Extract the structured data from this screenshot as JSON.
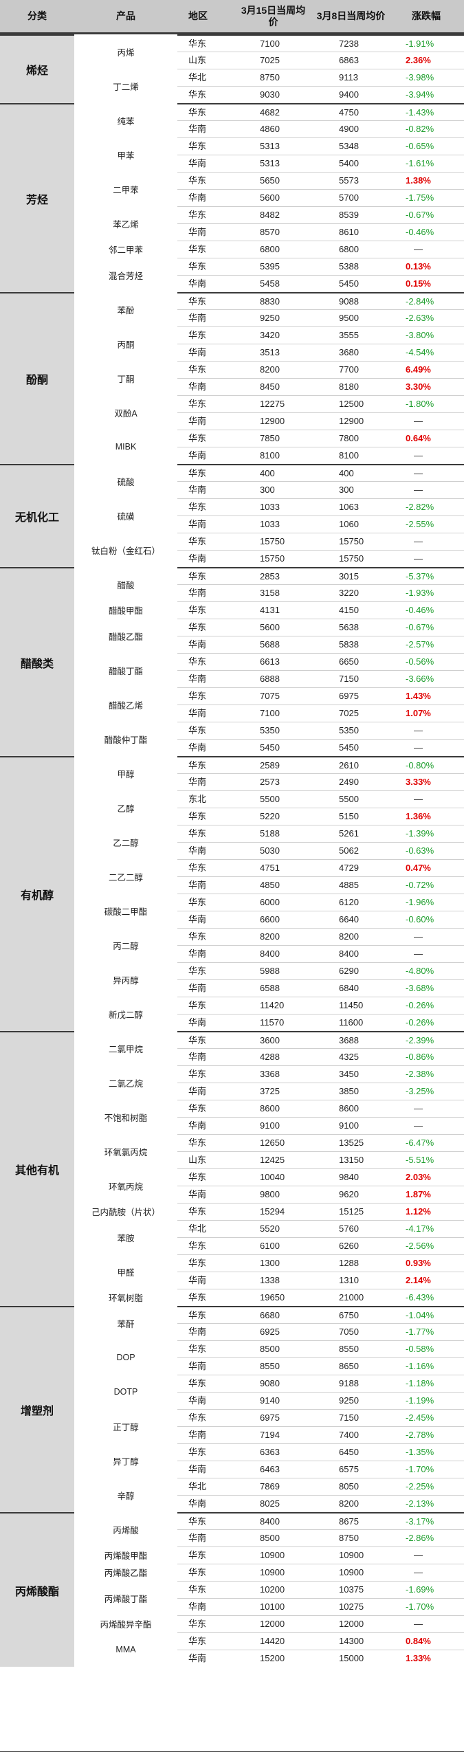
{
  "headers": {
    "category": "分类",
    "product": "产品",
    "region": "地区",
    "price_this_week": "3月15日当周均价",
    "price_last_week": "3月8日当周均价",
    "change": "涨跌幅"
  },
  "flat_symbol": "—",
  "colors": {
    "up": "#e00000",
    "down": "#1e9e2d",
    "header_bg": "#c9c9c9",
    "category_bg": "#d9d9d9"
  },
  "categories": [
    {
      "name": "烯烃",
      "products": [
        {
          "name": "丙烯",
          "rows": [
            [
              "华东",
              "7100",
              "7238",
              "-1.91%"
            ],
            [
              "山东",
              "7025",
              "6863",
              "2.36%"
            ]
          ]
        },
        {
          "name": "丁二烯",
          "rows": [
            [
              "华北",
              "8750",
              "9113",
              "-3.98%"
            ],
            [
              "华东",
              "9030",
              "9400",
              "-3.94%"
            ]
          ]
        }
      ]
    },
    {
      "name": "芳烃",
      "products": [
        {
          "name": "纯苯",
          "rows": [
            [
              "华东",
              "4682",
              "4750",
              "-1.43%"
            ],
            [
              "华南",
              "4860",
              "4900",
              "-0.82%"
            ]
          ]
        },
        {
          "name": "甲苯",
          "rows": [
            [
              "华东",
              "5313",
              "5348",
              "-0.65%"
            ],
            [
              "华南",
              "5313",
              "5400",
              "-1.61%"
            ]
          ]
        },
        {
          "name": "二甲苯",
          "rows": [
            [
              "华东",
              "5650",
              "5573",
              "1.38%"
            ],
            [
              "华南",
              "5600",
              "5700",
              "-1.75%"
            ]
          ]
        },
        {
          "name": "苯乙烯",
          "rows": [
            [
              "华东",
              "8482",
              "8539",
              "-0.67%"
            ],
            [
              "华南",
              "8570",
              "8610",
              "-0.46%"
            ]
          ]
        },
        {
          "name": "邻二甲苯",
          "rows": [
            [
              "华东",
              "6800",
              "6800",
              "—"
            ]
          ]
        },
        {
          "name": "混合芳烃",
          "rows": [
            [
              "华东",
              "5395",
              "5388",
              "0.13%"
            ],
            [
              "华南",
              "5458",
              "5450",
              "0.15%"
            ]
          ]
        }
      ]
    },
    {
      "name": "酚酮",
      "products": [
        {
          "name": "苯酚",
          "rows": [
            [
              "华东",
              "8830",
              "9088",
              "-2.84%"
            ],
            [
              "华南",
              "9250",
              "9500",
              "-2.63%"
            ]
          ]
        },
        {
          "name": "丙酮",
          "rows": [
            [
              "华东",
              "3420",
              "3555",
              "-3.80%"
            ],
            [
              "华南",
              "3513",
              "3680",
              "-4.54%"
            ]
          ]
        },
        {
          "name": "丁酮",
          "rows": [
            [
              "华东",
              "8200",
              "7700",
              "6.49%"
            ],
            [
              "华南",
              "8450",
              "8180",
              "3.30%"
            ]
          ]
        },
        {
          "name": "双酚A",
          "rows": [
            [
              "华东",
              "12275",
              "12500",
              "-1.80%"
            ],
            [
              "华南",
              "12900",
              "12900",
              "—"
            ]
          ]
        },
        {
          "name": "MIBK",
          "rows": [
            [
              "华东",
              "7850",
              "7800",
              "0.64%"
            ],
            [
              "华南",
              "8100",
              "8100",
              "—"
            ]
          ]
        }
      ]
    },
    {
      "name": "无机化工",
      "products": [
        {
          "name": "硫酸",
          "rows": [
            [
              "华东",
              "400",
              "400",
              "—"
            ],
            [
              "华南",
              "300",
              "300",
              "—"
            ]
          ]
        },
        {
          "name": "硫磺",
          "rows": [
            [
              "华东",
              "1033",
              "1063",
              "-2.82%"
            ],
            [
              "华南",
              "1033",
              "1060",
              "-2.55%"
            ]
          ]
        },
        {
          "name": "钛白粉（金红石）",
          "rows": [
            [
              "华东",
              "15750",
              "15750",
              "—"
            ],
            [
              "华南",
              "15750",
              "15750",
              "—"
            ]
          ]
        }
      ]
    },
    {
      "name": "醋酸类",
      "products": [
        {
          "name": "醋酸",
          "rows": [
            [
              "华东",
              "2853",
              "3015",
              "-5.37%"
            ],
            [
              "华南",
              "3158",
              "3220",
              "-1.93%"
            ]
          ]
        },
        {
          "name": "醋酸甲酯",
          "rows": [
            [
              "华东",
              "4131",
              "4150",
              "-0.46%"
            ]
          ]
        },
        {
          "name": "醋酸乙酯",
          "rows": [
            [
              "华东",
              "5600",
              "5638",
              "-0.67%"
            ],
            [
              "华南",
              "5688",
              "5838",
              "-2.57%"
            ]
          ]
        },
        {
          "name": "醋酸丁酯",
          "rows": [
            [
              "华东",
              "6613",
              "6650",
              "-0.56%"
            ],
            [
              "华南",
              "6888",
              "7150",
              "-3.66%"
            ]
          ]
        },
        {
          "name": "醋酸乙烯",
          "rows": [
            [
              "华东",
              "7075",
              "6975",
              "1.43%"
            ],
            [
              "华南",
              "7100",
              "7025",
              "1.07%"
            ]
          ]
        },
        {
          "name": "醋酸仲丁酯",
          "rows": [
            [
              "华东",
              "5350",
              "5350",
              "—"
            ],
            [
              "华南",
              "5450",
              "5450",
              "—"
            ]
          ]
        }
      ]
    },
    {
      "name": "有机醇",
      "products": [
        {
          "name": "甲醇",
          "rows": [
            [
              "华东",
              "2589",
              "2610",
              "-0.80%"
            ],
            [
              "华南",
              "2573",
              "2490",
              "3.33%"
            ]
          ]
        },
        {
          "name": "乙醇",
          "rows": [
            [
              "东北",
              "5500",
              "5500",
              "—"
            ],
            [
              "华东",
              "5220",
              "5150",
              "1.36%"
            ]
          ]
        },
        {
          "name": "乙二醇",
          "rows": [
            [
              "华东",
              "5188",
              "5261",
              "-1.39%"
            ],
            [
              "华南",
              "5030",
              "5062",
              "-0.63%"
            ]
          ]
        },
        {
          "name": "二乙二醇",
          "rows": [
            [
              "华东",
              "4751",
              "4729",
              "0.47%"
            ],
            [
              "华南",
              "4850",
              "4885",
              "-0.72%"
            ]
          ]
        },
        {
          "name": "碳酸二甲酯",
          "rows": [
            [
              "华东",
              "6000",
              "6120",
              "-1.96%"
            ],
            [
              "华南",
              "6600",
              "6640",
              "-0.60%"
            ]
          ]
        },
        {
          "name": "丙二醇",
          "rows": [
            [
              "华东",
              "8200",
              "8200",
              "—"
            ],
            [
              "华南",
              "8400",
              "8400",
              "—"
            ]
          ]
        },
        {
          "name": "异丙醇",
          "rows": [
            [
              "华东",
              "5988",
              "6290",
              "-4.80%"
            ],
            [
              "华南",
              "6588",
              "6840",
              "-3.68%"
            ]
          ]
        },
        {
          "name": "新戊二醇",
          "rows": [
            [
              "华东",
              "11420",
              "11450",
              "-0.26%"
            ],
            [
              "华南",
              "11570",
              "11600",
              "-0.26%"
            ]
          ]
        }
      ]
    },
    {
      "name": "其他有机",
      "products": [
        {
          "name": "二氯甲烷",
          "rows": [
            [
              "华东",
              "3600",
              "3688",
              "-2.39%"
            ],
            [
              "华南",
              "4288",
              "4325",
              "-0.86%"
            ]
          ]
        },
        {
          "name": "二氯乙烷",
          "rows": [
            [
              "华东",
              "3368",
              "3450",
              "-2.38%"
            ],
            [
              "华南",
              "3725",
              "3850",
              "-3.25%"
            ]
          ]
        },
        {
          "name": "不饱和树脂",
          "rows": [
            [
              "华东",
              "8600",
              "8600",
              "—"
            ],
            [
              "华南",
              "9100",
              "9100",
              "—"
            ]
          ]
        },
        {
          "name": "环氧氯丙烷",
          "rows": [
            [
              "华东",
              "12650",
              "13525",
              "-6.47%"
            ],
            [
              "山东",
              "12425",
              "13150",
              "-5.51%"
            ]
          ]
        },
        {
          "name": "环氧丙烷",
          "rows": [
            [
              "华东",
              "10040",
              "9840",
              "2.03%"
            ],
            [
              "华南",
              "9800",
              "9620",
              "1.87%"
            ]
          ]
        },
        {
          "name": "己内酰胺（片状）",
          "rows": [
            [
              "华东",
              "15294",
              "15125",
              "1.12%"
            ]
          ]
        },
        {
          "name": "苯胺",
          "rows": [
            [
              "华北",
              "5520",
              "5760",
              "-4.17%"
            ],
            [
              "华东",
              "6100",
              "6260",
              "-2.56%"
            ]
          ]
        },
        {
          "name": "甲醛",
          "rows": [
            [
              "华东",
              "1300",
              "1288",
              "0.93%"
            ],
            [
              "华南",
              "1338",
              "1310",
              "2.14%"
            ]
          ]
        },
        {
          "name": "环氧树脂",
          "rows": [
            [
              "华东",
              "19650",
              "21000",
              "-6.43%"
            ]
          ]
        }
      ]
    },
    {
      "name": "增塑剂",
      "products": [
        {
          "name": "苯酐",
          "rows": [
            [
              "华东",
              "6680",
              "6750",
              "-1.04%"
            ],
            [
              "华南",
              "6925",
              "7050",
              "-1.77%"
            ]
          ]
        },
        {
          "name": "DOP",
          "rows": [
            [
              "华东",
              "8500",
              "8550",
              "-0.58%"
            ],
            [
              "华南",
              "8550",
              "8650",
              "-1.16%"
            ]
          ]
        },
        {
          "name": "DOTP",
          "rows": [
            [
              "华东",
              "9080",
              "9188",
              "-1.18%"
            ],
            [
              "华南",
              "9140",
              "9250",
              "-1.19%"
            ]
          ]
        },
        {
          "name": "正丁醇",
          "rows": [
            [
              "华东",
              "6975",
              "7150",
              "-2.45%"
            ],
            [
              "华南",
              "7194",
              "7400",
              "-2.78%"
            ]
          ]
        },
        {
          "name": "异丁醇",
          "rows": [
            [
              "华东",
              "6363",
              "6450",
              "-1.35%"
            ],
            [
              "华南",
              "6463",
              "6575",
              "-1.70%"
            ]
          ]
        },
        {
          "name": "辛醇",
          "rows": [
            [
              "华北",
              "7869",
              "8050",
              "-2.25%"
            ],
            [
              "华南",
              "8025",
              "8200",
              "-2.13%"
            ]
          ]
        }
      ]
    },
    {
      "name": "丙烯酸酯",
      "products": [
        {
          "name": "丙烯酸",
          "rows": [
            [
              "华东",
              "8400",
              "8675",
              "-3.17%"
            ],
            [
              "华南",
              "8500",
              "8750",
              "-2.86%"
            ]
          ]
        },
        {
          "name": "丙烯酸甲酯",
          "rows": [
            [
              "华东",
              "10900",
              "10900",
              "—"
            ]
          ]
        },
        {
          "name": "丙烯酸乙酯",
          "rows": [
            [
              "华东",
              "10900",
              "10900",
              "—"
            ]
          ]
        },
        {
          "name": "丙烯酸丁酯",
          "rows": [
            [
              "华东",
              "10200",
              "10375",
              "-1.69%"
            ],
            [
              "华南",
              "10100",
              "10275",
              "-1.70%"
            ]
          ]
        },
        {
          "name": "丙烯酸异辛酯",
          "rows": [
            [
              "华东",
              "12000",
              "12000",
              "—"
            ]
          ]
        },
        {
          "name": "MMA",
          "rows": [
            [
              "华东",
              "14420",
              "14300",
              "0.84%"
            ],
            [
              "华南",
              "15200",
              "15000",
              "1.33%"
            ]
          ]
        }
      ]
    }
  ]
}
